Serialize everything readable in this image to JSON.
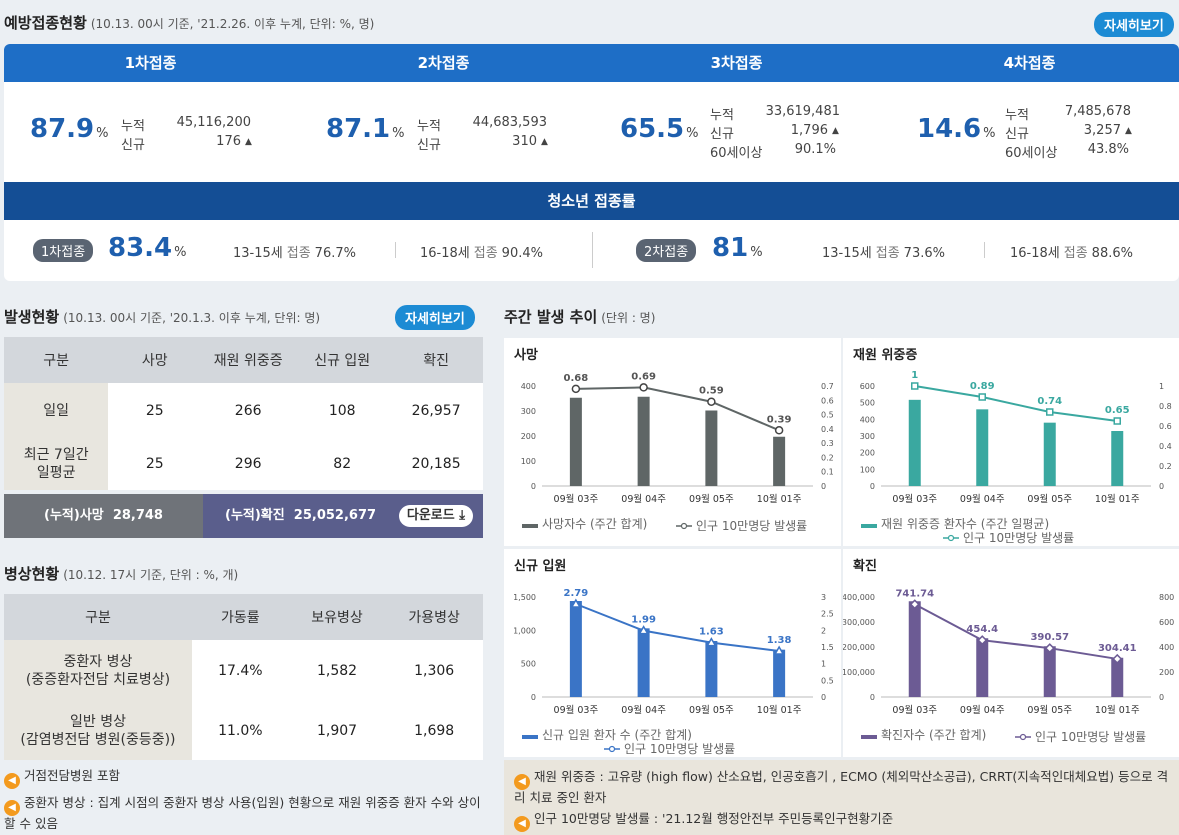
{
  "vaccination": {
    "title": "예방접종현황",
    "subtitle": "(10.13. 00시 기준, '21.2.26. 이후 누계, 단위: %, 명)",
    "detail_button": "자세히보기",
    "doses": [
      {
        "label": "1차접종",
        "rate": "87.9",
        "pct": "%",
        "cum_label": "누적",
        "cum": "45,116,200",
        "new_label": "신규",
        "new": "176"
      },
      {
        "label": "2차접종",
        "rate": "87.1",
        "pct": "%",
        "cum_label": "누적",
        "cum": "44,683,593",
        "new_label": "신규",
        "new": "310"
      },
      {
        "label": "3차접종",
        "rate": "65.5",
        "pct": "%",
        "cum_label": "누적",
        "cum": "33,619,481",
        "new_label": "신규",
        "new": "1,796",
        "age_label": "60세이상",
        "age": "90.1%"
      },
      {
        "label": "4차접종",
        "rate": "14.6",
        "pct": "%",
        "cum_label": "누적",
        "cum": "7,485,678",
        "new_label": "신규",
        "new": "3,257",
        "age_label": "60세이상",
        "age": "43.8%"
      }
    ],
    "teen": {
      "title": "청소년 접종률",
      "first": {
        "badge": "1차접종",
        "rate": "83.4",
        "pct": "%",
        "a_age": "13-15세",
        "a_lbl": "접종",
        "a_val": "76.7%",
        "b_age": "16-18세",
        "b_lbl": "접종",
        "b_val": "90.4%"
      },
      "second": {
        "badge": "2차접종",
        "rate": "81",
        "pct": "%",
        "a_age": "13-15세",
        "a_lbl": "접종",
        "a_val": "73.6%",
        "b_age": "16-18세",
        "b_lbl": "접종",
        "b_val": "88.6%"
      }
    }
  },
  "occurrence": {
    "title": "발생현황",
    "subtitle": "(10.13. 00시 기준, '20.1.3. 이후 누계, 단위: 명)",
    "detail_button": "자세히보기",
    "headers": [
      "구분",
      "사망",
      "재원 위중증",
      "신규 입원",
      "확진"
    ],
    "rows": [
      {
        "label": "일일",
        "values": [
          "25",
          "266",
          "108",
          "26,957"
        ]
      },
      {
        "label": "최근 7일간\n일평균",
        "values": [
          "25",
          "296",
          "82",
          "20,185"
        ]
      }
    ],
    "cum_death_label": "(누적)사망",
    "cum_death": "28,748",
    "cum_conf_label": "(누적)확진",
    "cum_conf": "25,052,677",
    "download": "다운로드"
  },
  "beds": {
    "title": "병상현황",
    "subtitle": "(10.12. 17시 기준, 단위 : %, 개)",
    "headers": [
      "구분",
      "가동률",
      "보유병상",
      "가용병상"
    ],
    "rows": [
      {
        "label1": "중환자 병상",
        "label2": "(중증환자전담 치료병상)",
        "values": [
          "17.4%",
          "1,582",
          "1,306"
        ]
      },
      {
        "label1": "일반 병상",
        "label2": "(감염병전담 병원(중등중))",
        "values": [
          "11.0%",
          "1,907",
          "1,698"
        ]
      }
    ],
    "notes": [
      "거점전담병원 포함",
      "중환자 병상 : 집계 시점의 중환자 병상 사용(입원) 현황으로 재원 위중증 환자 수와 상이할 수 있음"
    ]
  },
  "weekly": {
    "title": "주간 발생 추이",
    "subtitle": "(단위 : 명)",
    "notes": [
      "재원 위중증 : 고유량 (high flow) 산소요법, 인공호흡기 , ECMO (체외막산소공급), CRRT(지속적인대체요법) 등으로 격리 치료 중인 환자",
      "인구 10만명당 발생률 : '21.12월 행정안전부 주민등록인구현황기준"
    ]
  },
  "colors": {
    "blue": "#1e6ec6",
    "navy": "#144e95",
    "death": "#5f6666",
    "icu": "#3aa8a0",
    "hosp": "#3a74c6",
    "conf": "#6c5b94"
  },
  "chart_data": [
    {
      "type": "bar",
      "title": "사망",
      "categories": [
        "09월 03주",
        "09월 04주",
        "09월 05주",
        "10월 01주"
      ],
      "series": [
        {
          "name": "사망자수 (주간 합계)",
          "values": [
            353,
            357,
            302,
            197
          ]
        },
        {
          "name": "인구 10만명당 발생률",
          "values": [
            0.68,
            0.69,
            0.59,
            0.39
          ],
          "axis": "right"
        }
      ],
      "ylim": [
        0,
        400
      ],
      "yticks": [
        "0",
        "100",
        "200",
        "300",
        "400"
      ],
      "y2lim": [
        0,
        0.7
      ],
      "y2ticks": [
        "0",
        "0.1",
        "0.2",
        "0.3",
        "0.4",
        "0.5",
        "0.6",
        "0.7"
      ],
      "labels": [
        "0.68",
        "0.69",
        "0.59",
        "0.39"
      ],
      "legend": "bottom"
    },
    {
      "type": "bar",
      "title": "재원 위중증",
      "categories": [
        "09월 03주",
        "09월 04주",
        "09월 05주",
        "10월 01주"
      ],
      "series": [
        {
          "name": "재원 위중증 환자수 (주간 일평균)",
          "values": [
            517,
            460,
            380,
            330
          ]
        },
        {
          "name": "인구 10만명당 발생률",
          "values": [
            1,
            0.89,
            0.74,
            0.65
          ],
          "axis": "right"
        }
      ],
      "ylim": [
        0,
        600
      ],
      "yticks": [
        "0",
        "100",
        "200",
        "300",
        "400",
        "500",
        "600"
      ],
      "y2lim": [
        0,
        1
      ],
      "y2ticks": [
        "0",
        "0.2",
        "0.4",
        "0.6",
        "0.8",
        "1"
      ],
      "labels": [
        "1",
        "0.89",
        "0.74",
        "0.65"
      ],
      "legend": "bottom"
    },
    {
      "type": "bar",
      "title": "신규 입원",
      "categories": [
        "09월 03주",
        "09월 04주",
        "09월 05주",
        "10월 01주"
      ],
      "series": [
        {
          "name": "신규 입원 환자 수 (주간 합계)",
          "values": [
            1440,
            1030,
            840,
            710
          ]
        },
        {
          "name": "인구 10만명당 발생률",
          "values": [
            2.79,
            1.99,
            1.63,
            1.38
          ],
          "axis": "right"
        }
      ],
      "ylim": [
        0,
        1500
      ],
      "yticks": [
        "0",
        "500",
        "1,000",
        "1,500"
      ],
      "y2lim": [
        0,
        3
      ],
      "y2ticks": [
        "0",
        "0.5",
        "1",
        "1.5",
        "2",
        "2.5",
        "3"
      ],
      "labels": [
        "2.79",
        "1.99",
        "1.63",
        "1.38"
      ],
      "legend": "bottom"
    },
    {
      "type": "bar",
      "title": "확진",
      "categories": [
        "09월 03주",
        "09월 04주",
        "09월 05주",
        "10월 01주"
      ],
      "series": [
        {
          "name": "확진자수 (주간 합계)",
          "values": [
            383000,
            235000,
            203000,
            157000
          ]
        },
        {
          "name": "인구 10만명당 발생률",
          "values": [
            741.74,
            454.4,
            390.57,
            304.41
          ],
          "axis": "right"
        }
      ],
      "ylim": [
        0,
        400000
      ],
      "yticks": [
        "0",
        "100,000",
        "200,000",
        "300,000",
        "400,000"
      ],
      "y2lim": [
        0,
        800
      ],
      "y2ticks": [
        "0",
        "200",
        "400",
        "600",
        "800"
      ],
      "labels": [
        "741.74",
        "454.4",
        "390.57",
        "304.41"
      ],
      "legend": "bottom"
    }
  ]
}
